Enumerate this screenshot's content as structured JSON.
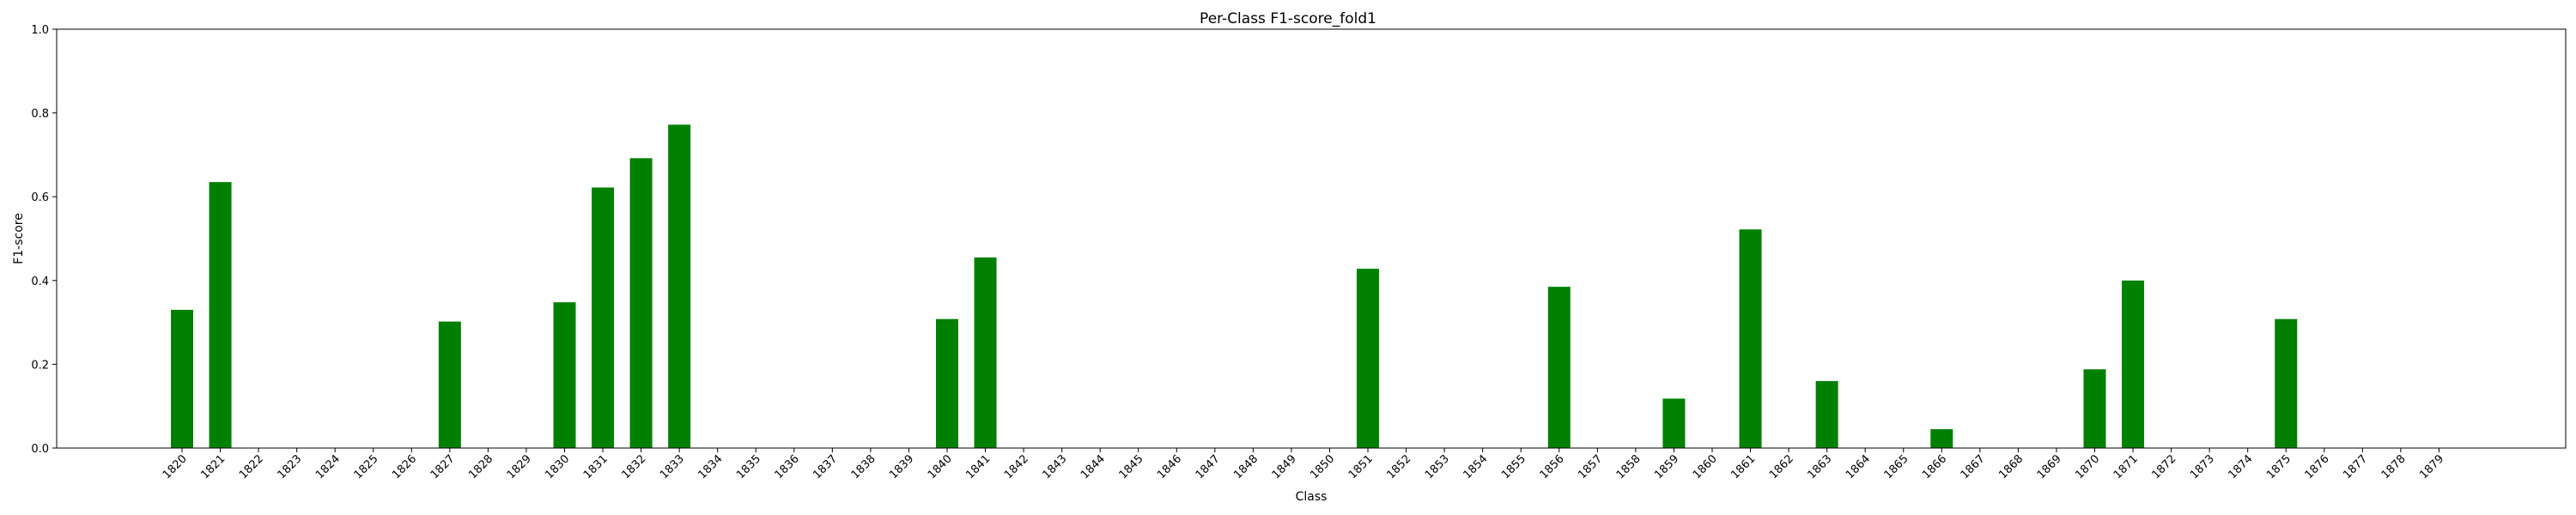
{
  "chart_data": {
    "type": "bar",
    "title": "Per-Class F1-score_fold1",
    "xlabel": "Class",
    "ylabel": "F1-score",
    "ylim": [
      0,
      1.0
    ],
    "yticks": [
      "0.0",
      "0.2",
      "0.4",
      "0.6",
      "0.8",
      "1.0"
    ],
    "grid": false,
    "legend": "none",
    "bar_color": "#008000",
    "categories": [
      "1820",
      "1821",
      "1822",
      "1823",
      "1824",
      "1825",
      "1826",
      "1827",
      "1828",
      "1829",
      "1830",
      "1831",
      "1832",
      "1833",
      "1834",
      "1835",
      "1836",
      "1837",
      "1838",
      "1839",
      "1840",
      "1841",
      "1842",
      "1843",
      "1844",
      "1845",
      "1846",
      "1847",
      "1848",
      "1849",
      "1850",
      "1851",
      "1852",
      "1853",
      "1854",
      "1855",
      "1856",
      "1857",
      "1858",
      "1859",
      "1860",
      "1861",
      "1862",
      "1863",
      "1864",
      "1865",
      "1866",
      "1867",
      "1868",
      "1869",
      "1870",
      "1871",
      "1872",
      "1873",
      "1874",
      "1875",
      "1876",
      "1877",
      "1878",
      "1879"
    ],
    "values": [
      0.33,
      0.635,
      0,
      0,
      0,
      0,
      0,
      0.302,
      0,
      0,
      0.348,
      0.622,
      0.692,
      0.772,
      0,
      0,
      0,
      0,
      0,
      0,
      0.308,
      0.455,
      0,
      0,
      0,
      0,
      0,
      0,
      0,
      0,
      0,
      0.428,
      0,
      0,
      0,
      0,
      0.385,
      0,
      0,
      0.118,
      0,
      0.522,
      0,
      0.16,
      0,
      0,
      0.045,
      0,
      0,
      0,
      0.188,
      0.4,
      0,
      0,
      0,
      0.308,
      0,
      0,
      0,
      0
    ]
  }
}
